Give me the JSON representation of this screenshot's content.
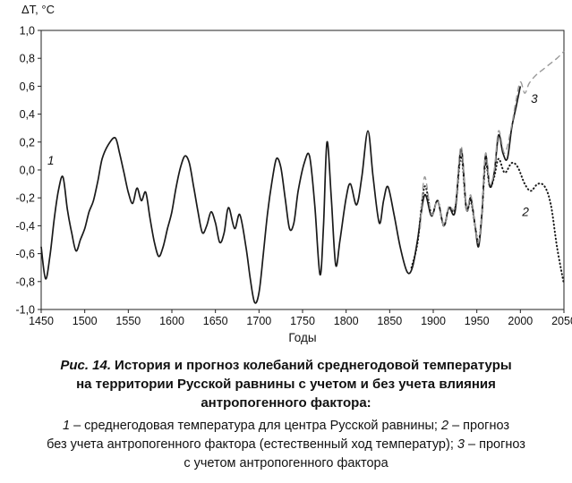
{
  "chart_data": {
    "type": "line",
    "title": "",
    "ylabel": "ΔT, °C",
    "xlabel": "Годы",
    "xlim": [
      1450,
      2050
    ],
    "ylim": [
      -1.0,
      1.0
    ],
    "grid": false,
    "legend_position": "none",
    "xticks": {
      "values": [
        1450,
        1500,
        1550,
        1600,
        1650,
        1700,
        1750,
        1800,
        1850,
        1900,
        1950,
        2000,
        2050
      ],
      "labels": [
        "1450",
        "1500",
        "1550",
        "1600",
        "1650",
        "1700",
        "1750",
        "1800",
        "1850",
        "1900",
        "1950",
        "2000",
        "2050"
      ]
    },
    "yticks": {
      "values": [
        1.0,
        0.8,
        0.6,
        0.4,
        0.2,
        0.0,
        -0.2,
        -0.4,
        -0.6,
        -0.8,
        -1.0
      ],
      "labels": [
        "1,0",
        "0,8",
        "0,6",
        "0,4",
        "0,2",
        "0,0",
        "-0,2",
        "-0,4",
        "-0,6",
        "-0,8",
        "-1,0"
      ]
    },
    "series": [
      {
        "name": "1 – среднегодовая температура для центра Русской равнины",
        "style": "solid",
        "color": "#1a1a1a",
        "points": [
          [
            1450,
            -0.55
          ],
          [
            1455,
            -0.78
          ],
          [
            1460,
            -0.62
          ],
          [
            1465,
            -0.35
          ],
          [
            1470,
            -0.14
          ],
          [
            1475,
            -0.05
          ],
          [
            1480,
            -0.28
          ],
          [
            1485,
            -0.45
          ],
          [
            1490,
            -0.58
          ],
          [
            1495,
            -0.5
          ],
          [
            1500,
            -0.42
          ],
          [
            1505,
            -0.3
          ],
          [
            1510,
            -0.22
          ],
          [
            1515,
            -0.08
          ],
          [
            1520,
            0.08
          ],
          [
            1527,
            0.18
          ],
          [
            1535,
            0.23
          ],
          [
            1540,
            0.12
          ],
          [
            1545,
            -0.02
          ],
          [
            1550,
            -0.16
          ],
          [
            1555,
            -0.24
          ],
          [
            1560,
            -0.13
          ],
          [
            1565,
            -0.22
          ],
          [
            1570,
            -0.16
          ],
          [
            1575,
            -0.35
          ],
          [
            1580,
            -0.52
          ],
          [
            1585,
            -0.62
          ],
          [
            1590,
            -0.55
          ],
          [
            1595,
            -0.42
          ],
          [
            1600,
            -0.3
          ],
          [
            1605,
            -0.12
          ],
          [
            1610,
            0.02
          ],
          [
            1615,
            0.1
          ],
          [
            1620,
            0.05
          ],
          [
            1625,
            -0.12
          ],
          [
            1630,
            -0.3
          ],
          [
            1635,
            -0.45
          ],
          [
            1640,
            -0.4
          ],
          [
            1645,
            -0.3
          ],
          [
            1650,
            -0.38
          ],
          [
            1655,
            -0.52
          ],
          [
            1660,
            -0.45
          ],
          [
            1665,
            -0.27
          ],
          [
            1672,
            -0.42
          ],
          [
            1678,
            -0.32
          ],
          [
            1685,
            -0.55
          ],
          [
            1690,
            -0.78
          ],
          [
            1695,
            -0.95
          ],
          [
            1700,
            -0.88
          ],
          [
            1705,
            -0.6
          ],
          [
            1710,
            -0.3
          ],
          [
            1715,
            -0.08
          ],
          [
            1720,
            0.08
          ],
          [
            1725,
            0.02
          ],
          [
            1730,
            -0.2
          ],
          [
            1735,
            -0.42
          ],
          [
            1740,
            -0.38
          ],
          [
            1745,
            -0.15
          ],
          [
            1752,
            0.05
          ],
          [
            1758,
            0.1
          ],
          [
            1764,
            -0.25
          ],
          [
            1770,
            -0.75
          ],
          [
            1774,
            -0.4
          ],
          [
            1778,
            0.2
          ],
          [
            1783,
            -0.2
          ],
          [
            1788,
            -0.68
          ],
          [
            1793,
            -0.5
          ],
          [
            1800,
            -0.2
          ],
          [
            1805,
            -0.1
          ],
          [
            1812,
            -0.25
          ],
          [
            1818,
            -0.05
          ],
          [
            1825,
            0.28
          ],
          [
            1831,
            -0.05
          ],
          [
            1838,
            -0.38
          ],
          [
            1843,
            -0.22
          ],
          [
            1848,
            -0.12
          ],
          [
            1855,
            -0.32
          ],
          [
            1862,
            -0.55
          ],
          [
            1870,
            -0.73
          ],
          [
            1876,
            -0.7
          ],
          [
            1882,
            -0.5
          ],
          [
            1890,
            -0.18
          ],
          [
            1898,
            -0.33
          ],
          [
            1905,
            -0.22
          ],
          [
            1912,
            -0.4
          ],
          [
            1918,
            -0.27
          ],
          [
            1925,
            -0.3
          ],
          [
            1932,
            0.15
          ],
          [
            1938,
            -0.28
          ],
          [
            1943,
            -0.2
          ],
          [
            1948,
            -0.4
          ],
          [
            1952,
            -0.55
          ],
          [
            1956,
            -0.3
          ],
          [
            1960,
            0.1
          ],
          [
            1965,
            -0.12
          ],
          [
            1970,
            -0.02
          ],
          [
            1975,
            0.25
          ],
          [
            1980,
            0.12
          ],
          [
            1985,
            0.08
          ],
          [
            1990,
            0.3
          ],
          [
            1995,
            0.45
          ],
          [
            2000,
            0.6
          ]
        ]
      },
      {
        "name": "2 – прогноз без учета антропогенного фактора (естественный ход температур)",
        "style": "dotted",
        "color": "#1a1a1a",
        "points": [
          [
            1875,
            -0.7
          ],
          [
            1882,
            -0.52
          ],
          [
            1890,
            -0.12
          ],
          [
            1898,
            -0.32
          ],
          [
            1905,
            -0.22
          ],
          [
            1912,
            -0.4
          ],
          [
            1918,
            -0.27
          ],
          [
            1925,
            -0.28
          ],
          [
            1932,
            0.1
          ],
          [
            1938,
            -0.28
          ],
          [
            1943,
            -0.22
          ],
          [
            1948,
            -0.4
          ],
          [
            1952,
            -0.52
          ],
          [
            1956,
            -0.3
          ],
          [
            1960,
            0.05
          ],
          [
            1965,
            -0.12
          ],
          [
            1970,
            -0.05
          ],
          [
            1975,
            0.08
          ],
          [
            1982,
            -0.02
          ],
          [
            1990,
            0.05
          ],
          [
            1997,
            0.02
          ],
          [
            2005,
            -0.1
          ],
          [
            2012,
            -0.15
          ],
          [
            2020,
            -0.1
          ],
          [
            2028,
            -0.12
          ],
          [
            2035,
            -0.25
          ],
          [
            2042,
            -0.55
          ],
          [
            2050,
            -0.82
          ]
        ]
      },
      {
        "name": "3 – прогноз с учетом антропогенного фактора",
        "style": "dashed",
        "color": "#9a9a9a",
        "points": [
          [
            1885,
            -0.42
          ],
          [
            1890,
            -0.05
          ],
          [
            1898,
            -0.32
          ],
          [
            1905,
            -0.22
          ],
          [
            1912,
            -0.4
          ],
          [
            1918,
            -0.26
          ],
          [
            1925,
            -0.26
          ],
          [
            1932,
            0.17
          ],
          [
            1938,
            -0.28
          ],
          [
            1943,
            -0.18
          ],
          [
            1948,
            -0.4
          ],
          [
            1952,
            -0.52
          ],
          [
            1956,
            -0.28
          ],
          [
            1960,
            0.12
          ],
          [
            1965,
            -0.1
          ],
          [
            1970,
            0.0
          ],
          [
            1975,
            0.28
          ],
          [
            1982,
            0.12
          ],
          [
            1990,
            0.32
          ],
          [
            1995,
            0.5
          ],
          [
            2000,
            0.63
          ],
          [
            2005,
            0.55
          ],
          [
            2010,
            0.62
          ],
          [
            2018,
            0.68
          ],
          [
            2026,
            0.72
          ],
          [
            2034,
            0.76
          ],
          [
            2042,
            0.8
          ],
          [
            2050,
            0.85
          ]
        ]
      }
    ],
    "curve_labels": [
      {
        "text": "1",
        "year": 1461,
        "value": 0.04
      },
      {
        "text": "2",
        "year": 2006,
        "value": -0.33
      },
      {
        "text": "3",
        "year": 2016,
        "value": 0.48
      }
    ]
  },
  "caption": {
    "fig_label": "Рис. 14.",
    "line1": "История и прогноз колебаний среднегодовой температуры",
    "line2": "на территории Русской равнины с учетом и без учета влияния",
    "line3": "антропогенного фактора:"
  },
  "legend": {
    "lines": [
      [
        {
          "text": "1",
          "italic": true
        },
        {
          "text": " – среднегодовая температура для центра Русской равнины; ",
          "italic": false
        },
        {
          "text": "2",
          "italic": true
        },
        {
          "text": " – прогноз",
          "italic": false
        }
      ],
      [
        {
          "text": "без учета антропогенного фактора (естественный ход температур); ",
          "italic": false
        },
        {
          "text": "3",
          "italic": true
        },
        {
          "text": " – прогноз",
          "italic": false
        }
      ],
      [
        {
          "text": "с учетом антропогенного фактора",
          "italic": false
        }
      ]
    ]
  }
}
